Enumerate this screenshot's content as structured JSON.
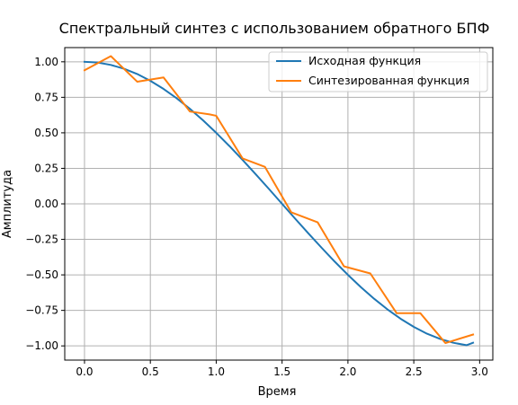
{
  "chart_data": {
    "type": "line",
    "title": "Спектральный синтез с использованием  обратного БПФ",
    "xlabel": "Время",
    "ylabel": "Амплитуда",
    "xlim": [
      -0.15,
      3.1
    ],
    "ylim": [
      -1.1,
      1.1
    ],
    "xticks": [
      0.0,
      0.5,
      1.0,
      1.5,
      2.0,
      2.5,
      3.0
    ],
    "xtick_labels": [
      "0.0",
      "0.5",
      "1.0",
      "1.5",
      "2.0",
      "2.5",
      "3.0"
    ],
    "yticks": [
      1.0,
      0.75,
      0.5,
      0.25,
      0.0,
      -0.25,
      -0.5,
      -0.75,
      -1.0
    ],
    "ytick_labels": [
      "1.00",
      "0.75",
      "0.50",
      "0.25",
      "0.00",
      "−0.25",
      "−0.50",
      "−0.75",
      "−1.00"
    ],
    "grid": true,
    "legend_position": "top-right",
    "series": [
      {
        "name": "Исходная функция",
        "color": "#1f77b4",
        "x": [
          0.0,
          0.1,
          0.2,
          0.3,
          0.4,
          0.5,
          0.6,
          0.7,
          0.8,
          0.9,
          1.0,
          1.1,
          1.2,
          1.3,
          1.4,
          1.5,
          1.6,
          1.7,
          1.8,
          1.9,
          2.0,
          2.1,
          2.2,
          2.3,
          2.4,
          2.5,
          2.6,
          2.7,
          2.8,
          2.9,
          2.95
        ],
        "y": [
          1.0,
          0.995,
          0.978,
          0.951,
          0.914,
          0.866,
          0.809,
          0.743,
          0.669,
          0.588,
          0.5,
          0.407,
          0.309,
          0.208,
          0.105,
          0.0,
          -0.105,
          -0.208,
          -0.309,
          -0.407,
          -0.5,
          -0.588,
          -0.669,
          -0.743,
          -0.809,
          -0.866,
          -0.914,
          -0.951,
          -0.978,
          -0.995,
          -0.978
        ]
      },
      {
        "name": "Синтезированная функция",
        "color": "#ff7f0e",
        "x": [
          0.0,
          0.2,
          0.4,
          0.6,
          0.8,
          0.95,
          1.0,
          1.2,
          1.37,
          1.57,
          1.77,
          1.97,
          2.17,
          2.37,
          2.55,
          2.74,
          2.95
        ],
        "y": [
          0.94,
          1.04,
          0.86,
          0.89,
          0.65,
          0.63,
          0.62,
          0.32,
          0.26,
          -0.06,
          -0.13,
          -0.44,
          -0.49,
          -0.77,
          -0.77,
          -0.98,
          -0.92
        ]
      }
    ]
  }
}
